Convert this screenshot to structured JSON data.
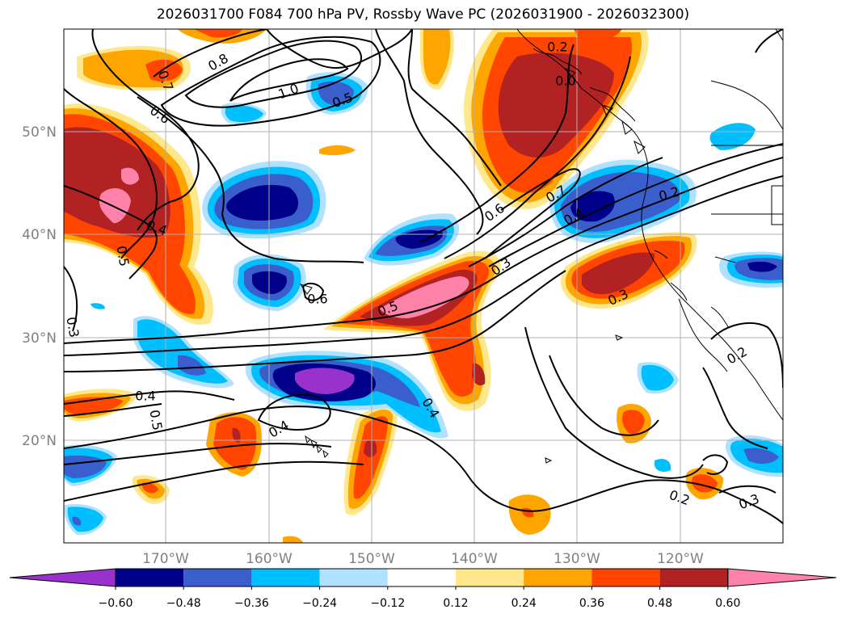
{
  "title": "2026031700 F084 700 hPa PV, Rossby Wave PC (2026031900 - 2026032300)",
  "map": {
    "lon_range": [
      -180,
      -110
    ],
    "lat_range": [
      10,
      60
    ],
    "lat_labels": [
      "50°N",
      "40°N",
      "30°N",
      "20°N"
    ],
    "lon_labels": [
      "170°W",
      "160°W",
      "150°W",
      "140°W",
      "130°W",
      "120°W"
    ],
    "gridlines": true
  },
  "colorbar": {
    "levels": [
      "−0.60",
      "−0.48",
      "−0.36",
      "−0.24",
      "−0.12",
      "0.12",
      "0.24",
      "0.36",
      "0.48",
      "0.60"
    ],
    "colors": [
      "#9932cc",
      "#00008b",
      "#3a5fcd",
      "#00bfff",
      "#b0e2ff",
      "#ffffff",
      "#ffe88c",
      "#ffa500",
      "#ff4500",
      "#b22222",
      "#ff82ab"
    ],
    "extend": "both"
  },
  "contour_labels": [
    {
      "text": "0.8"
    },
    {
      "text": "0.7"
    },
    {
      "text": "0.6"
    },
    {
      "text": "1.0"
    },
    {
      "text": "0.5"
    },
    {
      "text": "0.2"
    },
    {
      "text": "0.4"
    },
    {
      "text": "0.5"
    },
    {
      "text": "0.3"
    },
    {
      "text": "0.6"
    },
    {
      "text": "0.5"
    },
    {
      "text": "0.3"
    },
    {
      "text": "0.6"
    },
    {
      "text": "0.7"
    },
    {
      "text": "0.4"
    },
    {
      "text": "0.2"
    },
    {
      "text": "0.3"
    },
    {
      "text": "0.4"
    },
    {
      "text": "0.5"
    },
    {
      "text": "0.4"
    },
    {
      "text": "0.4"
    },
    {
      "text": "0.2"
    },
    {
      "text": "0.3"
    },
    {
      "text": "0.2"
    },
    {
      "text": "0.0"
    }
  ]
}
